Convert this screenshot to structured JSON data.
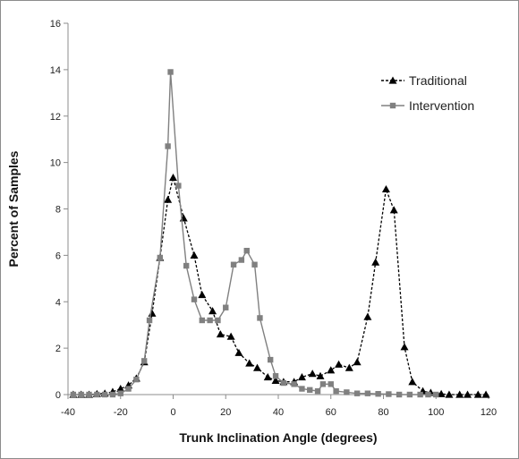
{
  "chart_data": {
    "type": "line",
    "title": "",
    "xlabel": "Trunk Inclination Angle (degrees)",
    "ylabel": "Percent of Samples",
    "xlim": [
      -40,
      120
    ],
    "ylim": [
      0,
      16
    ],
    "x_ticks": [
      "-40",
      "-20",
      "0",
      "20",
      "40",
      "60",
      "80",
      "100",
      "120"
    ],
    "y_ticks": [
      "0",
      "2",
      "4",
      "6",
      "8",
      "10",
      "12",
      "14",
      "16"
    ],
    "grid": false,
    "legend_position": "top-right",
    "series": [
      {
        "name": "Traditional",
        "line_style": "dashed",
        "marker": "triangle",
        "color": "#000000",
        "points": [
          [
            -38,
            0.0
          ],
          [
            -35,
            0.0
          ],
          [
            -32,
            0.0
          ],
          [
            -29,
            0.03
          ],
          [
            -26,
            0.05
          ],
          [
            -23,
            0.12
          ],
          [
            -20,
            0.25
          ],
          [
            -17,
            0.4
          ],
          [
            -14,
            0.7
          ],
          [
            -11,
            1.4
          ],
          [
            -8,
            3.5
          ],
          [
            -5,
            5.9
          ],
          [
            -2,
            8.4
          ],
          [
            0,
            9.35
          ],
          [
            4,
            7.6
          ],
          [
            8,
            6.0
          ],
          [
            11,
            4.3
          ],
          [
            15,
            3.6
          ],
          [
            18,
            2.6
          ],
          [
            22,
            2.5
          ],
          [
            25,
            1.8
          ],
          [
            29,
            1.35
          ],
          [
            32,
            1.15
          ],
          [
            36,
            0.75
          ],
          [
            39,
            0.6
          ],
          [
            42,
            0.55
          ],
          [
            46,
            0.55
          ],
          [
            49,
            0.75
          ],
          [
            53,
            0.9
          ],
          [
            56,
            0.8
          ],
          [
            60,
            1.05
          ],
          [
            63,
            1.3
          ],
          [
            67,
            1.15
          ],
          [
            70,
            1.4
          ],
          [
            74,
            3.35
          ],
          [
            77,
            5.7
          ],
          [
            81,
            8.85
          ],
          [
            84,
            7.95
          ],
          [
            88,
            2.05
          ],
          [
            91,
            0.55
          ],
          [
            95,
            0.15
          ],
          [
            98,
            0.08
          ],
          [
            102,
            0.03
          ],
          [
            105,
            0.0
          ],
          [
            109,
            0.0
          ],
          [
            112,
            0.0
          ],
          [
            116,
            0.0
          ],
          [
            119,
            0.0
          ]
        ]
      },
      {
        "name": "Intervention",
        "line_style": "solid",
        "marker": "square",
        "color": "#808080",
        "points": [
          [
            -38,
            0.0
          ],
          [
            -35,
            0.0
          ],
          [
            -32,
            0.0
          ],
          [
            -29,
            0.0
          ],
          [
            -26,
            0.0
          ],
          [
            -23,
            0.0
          ],
          [
            -20,
            0.05
          ],
          [
            -17,
            0.25
          ],
          [
            -14,
            0.65
          ],
          [
            -11,
            1.45
          ],
          [
            -9,
            3.2
          ],
          [
            -5,
            5.9
          ],
          [
            -2,
            10.7
          ],
          [
            -1,
            13.9
          ],
          [
            2,
            9.0
          ],
          [
            5,
            5.55
          ],
          [
            8,
            4.1
          ],
          [
            11,
            3.2
          ],
          [
            14,
            3.2
          ],
          [
            17,
            3.2
          ],
          [
            20,
            3.75
          ],
          [
            23,
            5.6
          ],
          [
            26,
            5.8
          ],
          [
            28,
            6.2
          ],
          [
            31,
            5.6
          ],
          [
            33,
            3.3
          ],
          [
            37,
            1.5
          ],
          [
            39,
            0.8
          ],
          [
            42,
            0.5
          ],
          [
            46,
            0.45
          ],
          [
            49,
            0.25
          ],
          [
            52,
            0.2
          ],
          [
            55,
            0.15
          ],
          [
            57,
            0.45
          ],
          [
            60,
            0.45
          ],
          [
            62,
            0.15
          ],
          [
            66,
            0.1
          ],
          [
            70,
            0.05
          ],
          [
            74,
            0.05
          ],
          [
            78,
            0.03
          ],
          [
            82,
            0.02
          ],
          [
            86,
            0.0
          ],
          [
            90,
            0.0
          ],
          [
            94,
            0.0
          ],
          [
            97,
            0.0
          ],
          [
            100,
            0.0
          ]
        ]
      }
    ]
  }
}
